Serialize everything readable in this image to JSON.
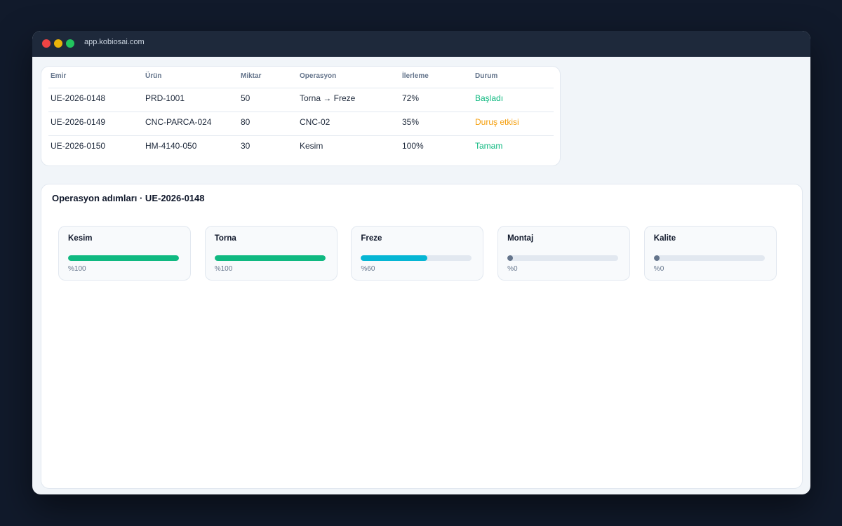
{
  "browser": {
    "url": "app.kobiosai.com"
  },
  "table": {
    "header": [
      "Emir",
      "Ürün",
      "Miktar",
      "Operasyon",
      "İlerleme",
      "Durum"
    ],
    "rows": [
      [
        "UE-2026-0148",
        "PRD-1001",
        "50",
        "Torna → Freze",
        "72%",
        "Başladı"
      ],
      [
        "UE-2026-0149",
        "CNC-PARCA-024",
        "80",
        "CNC-02",
        "35%",
        "Duruş etkisi"
      ],
      [
        "UE-2026-0150",
        "HM-4140-050",
        "30",
        "Kesim",
        "100%",
        "Tamam"
      ]
    ],
    "status_colors": [
      "#10b981",
      "#f59e0b",
      "#10b981"
    ]
  },
  "operations": {
    "title": "Operasyon adımları · UE-2026-0148",
    "steps": [
      {
        "name": "Kesim",
        "progress": 100,
        "progress_label": "%100",
        "color": "#10b981"
      },
      {
        "name": "Torna",
        "progress": 100,
        "progress_label": "%100",
        "color": "#10b981"
      },
      {
        "name": "Freze",
        "progress": 60,
        "progress_label": "%60",
        "color": "#06b6d4"
      },
      {
        "name": "Montaj",
        "progress": 0,
        "progress_label": "%0",
        "color": "#64748b"
      },
      {
        "name": "Kalite",
        "progress": 0,
        "progress_label": "%0",
        "color": "#64748b"
      }
    ]
  }
}
